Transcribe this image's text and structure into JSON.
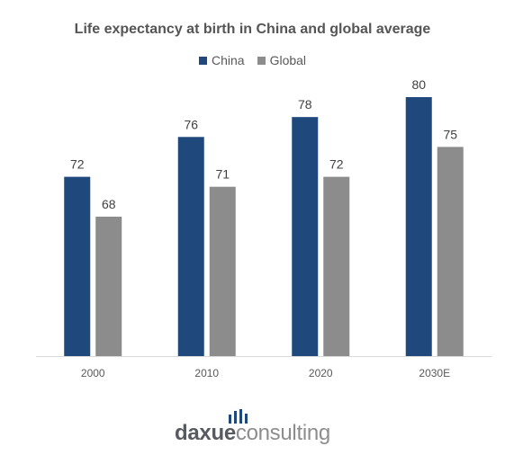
{
  "chart_data": {
    "type": "bar",
    "title": "Life expectancy at birth in China and global average",
    "categories": [
      "2000",
      "2010",
      "2020",
      "2030E"
    ],
    "series": [
      {
        "name": "China",
        "values": [
          72,
          76,
          78,
          80
        ],
        "color": "#1f497d"
      },
      {
        "name": "Global",
        "values": [
          68,
          71,
          72,
          75
        ],
        "color": "#8c8c8c"
      }
    ],
    "ylim": [
      54,
      82
    ],
    "grid": false,
    "legend": "top-center",
    "xlabel": "",
    "ylabel": ""
  },
  "logo": {
    "part1": "daxue",
    "part2": "consulting"
  }
}
